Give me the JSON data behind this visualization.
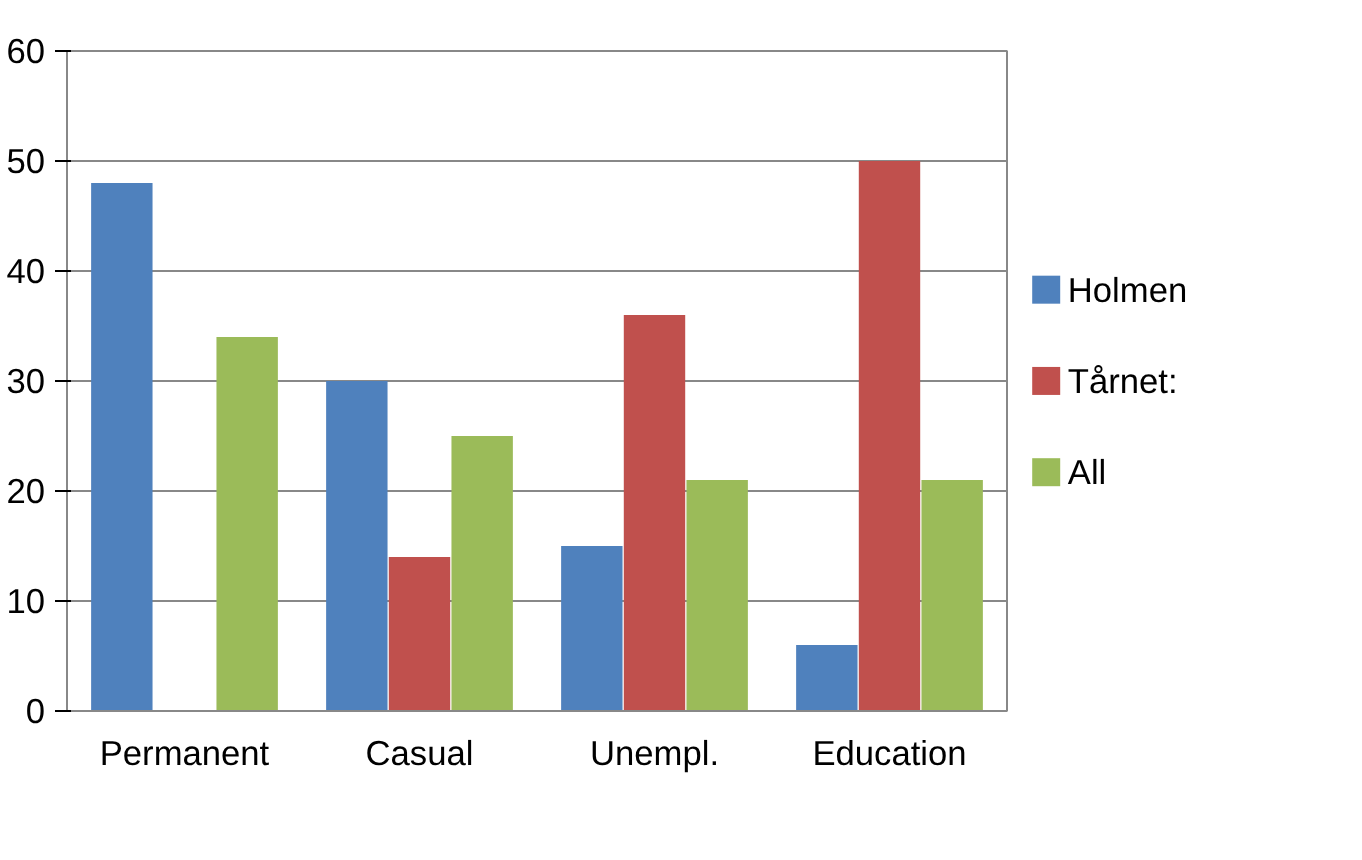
{
  "chart_data": {
    "type": "bar",
    "categories": [
      "Permanent",
      "Casual",
      "Unempl.",
      "Education"
    ],
    "series": [
      {
        "name": "Holmen",
        "color": "#4f81bd",
        "values": [
          48,
          30,
          15,
          6
        ]
      },
      {
        "name": "Tårnet:",
        "color": "#c0504d",
        "values": [
          null,
          14,
          36,
          50
        ]
      },
      {
        "name": "All",
        "color": "#9bbb59",
        "values": [
          34,
          25,
          21,
          21
        ]
      }
    ],
    "ylim": [
      0,
      60
    ],
    "yticks": [
      0,
      10,
      20,
      30,
      40,
      50,
      60
    ],
    "grid": "y",
    "legend": "right"
  }
}
